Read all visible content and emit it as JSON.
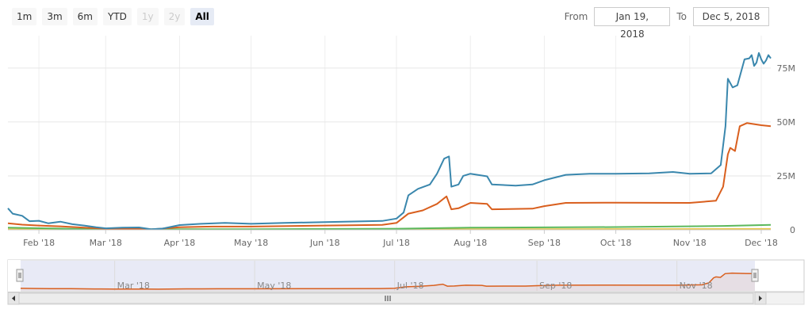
{
  "range_selector": {
    "buttons": [
      {
        "label": "1m",
        "state": "normal"
      },
      {
        "label": "3m",
        "state": "normal"
      },
      {
        "label": "6m",
        "state": "normal"
      },
      {
        "label": "YTD",
        "state": "normal"
      },
      {
        "label": "1y",
        "state": "disabled"
      },
      {
        "label": "2y",
        "state": "disabled"
      },
      {
        "label": "All",
        "state": "active"
      }
    ],
    "from_label": "From",
    "from_value": "Jan 19, 2018",
    "to_label": "To",
    "to_value": "Dec 5, 2018"
  },
  "chart_data": {
    "type": "line",
    "x_range": [
      "2018-01-19",
      "2018-12-05"
    ],
    "ylim": [
      0,
      90000000
    ],
    "y_ticks": [
      0,
      25000000,
      50000000,
      75000000
    ],
    "y_tick_labels": [
      "0",
      "25M",
      "50M",
      "75M"
    ],
    "x_ticks": [
      "2018-02-01",
      "2018-03-01",
      "2018-04-01",
      "2018-05-01",
      "2018-06-01",
      "2018-07-01",
      "2018-08-01",
      "2018-09-01",
      "2018-10-01",
      "2018-11-01",
      "2018-12-01"
    ],
    "x_tick_labels": [
      "Feb '18",
      "Mar '18",
      "Apr '18",
      "May '18",
      "Jun '18",
      "Jul '18",
      "Aug '18",
      "Sep '18",
      "Oct '18",
      "Nov '18",
      "Dec '18"
    ],
    "grid": true,
    "series": [
      {
        "color": "#3a87ad",
        "points": [
          [
            "2018-01-19",
            10000000
          ],
          [
            "2018-01-21",
            7500000
          ],
          [
            "2018-01-25",
            6500000
          ],
          [
            "2018-01-28",
            4000000
          ],
          [
            "2018-02-01",
            4200000
          ],
          [
            "2018-02-05",
            3000000
          ],
          [
            "2018-02-10",
            3800000
          ],
          [
            "2018-02-15",
            2600000
          ],
          [
            "2018-02-20",
            2000000
          ],
          [
            "2018-02-25",
            1200000
          ],
          [
            "2018-03-01",
            700000
          ],
          [
            "2018-03-08",
            1000000
          ],
          [
            "2018-03-15",
            1100000
          ],
          [
            "2018-03-20",
            300000
          ],
          [
            "2018-03-25",
            600000
          ],
          [
            "2018-04-01",
            2200000
          ],
          [
            "2018-04-10",
            2800000
          ],
          [
            "2018-04-20",
            3200000
          ],
          [
            "2018-05-01",
            2800000
          ],
          [
            "2018-05-15",
            3200000
          ],
          [
            "2018-06-01",
            3600000
          ],
          [
            "2018-06-15",
            3900000
          ],
          [
            "2018-06-25",
            4100000
          ],
          [
            "2018-07-01",
            5200000
          ],
          [
            "2018-07-04",
            8000000
          ],
          [
            "2018-07-06",
            16000000
          ],
          [
            "2018-07-10",
            19000000
          ],
          [
            "2018-07-15",
            21000000
          ],
          [
            "2018-07-18",
            26000000
          ],
          [
            "2018-07-21",
            33000000
          ],
          [
            "2018-07-23",
            34000000
          ],
          [
            "2018-07-24",
            20000000
          ],
          [
            "2018-07-27",
            21000000
          ],
          [
            "2018-07-29",
            25000000
          ],
          [
            "2018-08-01",
            26000000
          ],
          [
            "2018-08-08",
            24800000
          ],
          [
            "2018-08-10",
            21000000
          ],
          [
            "2018-08-20",
            20500000
          ],
          [
            "2018-08-27",
            21000000
          ],
          [
            "2018-09-01",
            23000000
          ],
          [
            "2018-09-10",
            25500000
          ],
          [
            "2018-09-20",
            26000000
          ],
          [
            "2018-10-01",
            26000000
          ],
          [
            "2018-10-15",
            26200000
          ],
          [
            "2018-10-25",
            26800000
          ],
          [
            "2018-11-01",
            26000000
          ],
          [
            "2018-11-10",
            26200000
          ],
          [
            "2018-11-14",
            30000000
          ],
          [
            "2018-11-16",
            48000000
          ],
          [
            "2018-11-17",
            70000000
          ],
          [
            "2018-11-19",
            66000000
          ],
          [
            "2018-11-21",
            67000000
          ],
          [
            "2018-11-24",
            79000000
          ],
          [
            "2018-11-26",
            79500000
          ],
          [
            "2018-11-27",
            81000000
          ],
          [
            "2018-11-28",
            76000000
          ],
          [
            "2018-11-29",
            77500000
          ],
          [
            "2018-11-30",
            82000000
          ],
          [
            "2018-12-01",
            79000000
          ],
          [
            "2018-12-02",
            77000000
          ],
          [
            "2018-12-03",
            78500000
          ],
          [
            "2018-12-04",
            81000000
          ],
          [
            "2018-12-05",
            79500000
          ]
        ]
      },
      {
        "color": "#d95f1e",
        "points": [
          [
            "2018-01-19",
            3000000
          ],
          [
            "2018-01-25",
            2400000
          ],
          [
            "2018-02-01",
            2000000
          ],
          [
            "2018-02-10",
            1600000
          ],
          [
            "2018-02-20",
            1000000
          ],
          [
            "2018-03-01",
            500000
          ],
          [
            "2018-03-15",
            600000
          ],
          [
            "2018-03-20",
            200000
          ],
          [
            "2018-04-01",
            1200000
          ],
          [
            "2018-04-15",
            1500000
          ],
          [
            "2018-05-01",
            1500000
          ],
          [
            "2018-06-01",
            2000000
          ],
          [
            "2018-06-25",
            2300000
          ],
          [
            "2018-07-01",
            3200000
          ],
          [
            "2018-07-06",
            7500000
          ],
          [
            "2018-07-12",
            9000000
          ],
          [
            "2018-07-18",
            12000000
          ],
          [
            "2018-07-22",
            15500000
          ],
          [
            "2018-07-24",
            9500000
          ],
          [
            "2018-07-27",
            10000000
          ],
          [
            "2018-08-01",
            12500000
          ],
          [
            "2018-08-08",
            12000000
          ],
          [
            "2018-08-10",
            9500000
          ],
          [
            "2018-08-27",
            9800000
          ],
          [
            "2018-09-01",
            11000000
          ],
          [
            "2018-09-10",
            12500000
          ],
          [
            "2018-10-01",
            12600000
          ],
          [
            "2018-11-01",
            12500000
          ],
          [
            "2018-11-12",
            13500000
          ],
          [
            "2018-11-15",
            20000000
          ],
          [
            "2018-11-17",
            35000000
          ],
          [
            "2018-11-18",
            38000000
          ],
          [
            "2018-11-20",
            36500000
          ],
          [
            "2018-11-22",
            48000000
          ],
          [
            "2018-11-25",
            49500000
          ],
          [
            "2018-12-01",
            48500000
          ],
          [
            "2018-12-05",
            48000000
          ]
        ]
      },
      {
        "color": "#5cb85c",
        "points": [
          [
            "2018-01-19",
            1000000
          ],
          [
            "2018-03-01",
            200000
          ],
          [
            "2018-05-01",
            300000
          ],
          [
            "2018-07-01",
            500000
          ],
          [
            "2018-08-01",
            1000000
          ],
          [
            "2018-10-01",
            1300000
          ],
          [
            "2018-11-15",
            1800000
          ],
          [
            "2018-12-05",
            2300000
          ]
        ]
      },
      {
        "color": "#e8c547",
        "points": [
          [
            "2018-01-19",
            300000
          ],
          [
            "2018-06-01",
            200000
          ],
          [
            "2018-12-05",
            400000
          ]
        ]
      }
    ],
    "navigator": {
      "x_ticks": [
        "2018-03-01",
        "2018-05-01",
        "2018-07-01",
        "2018-09-01",
        "2018-11-01"
      ],
      "x_tick_labels": [
        "Mar '18",
        "May '18",
        "Jul '18",
        "Sep '18",
        "Nov '18"
      ]
    }
  }
}
